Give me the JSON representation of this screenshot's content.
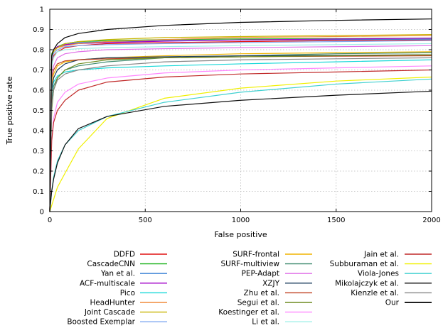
{
  "chart_data": {
    "type": "line",
    "title": "",
    "xlabel": "False positive",
    "ylabel": "True positive rate",
    "xlim": [
      0,
      2000
    ],
    "ylim": [
      0,
      1
    ],
    "xticks": [
      "0",
      "500",
      "1000",
      "1500",
      "2000"
    ],
    "yticks": [
      "0",
      "0.1",
      "0.2",
      "0.3",
      "0.4",
      "0.5",
      "0.6",
      "0.7",
      "0.8",
      "0.9",
      "1"
    ],
    "grid": true,
    "legend_position": "below",
    "series": [
      {
        "name": "DDFD",
        "color": "#e01010",
        "x": [
          0,
          10,
          20,
          40,
          80,
          150,
          300,
          600,
          1000,
          1500,
          2000
        ],
        "y": [
          0,
          0.74,
          0.77,
          0.79,
          0.81,
          0.82,
          0.83,
          0.835,
          0.84,
          0.845,
          0.848
        ]
      },
      {
        "name": "CascadeCNN",
        "color": "#1db31d",
        "x": [
          0,
          10,
          20,
          40,
          80,
          150,
          300,
          600,
          1000,
          1500,
          2000
        ],
        "y": [
          0,
          0.78,
          0.8,
          0.815,
          0.83,
          0.84,
          0.845,
          0.85,
          0.853,
          0.855,
          0.857
        ]
      },
      {
        "name": "Yan et al.",
        "color": "#3a82d6",
        "x": [
          0,
          10,
          20,
          40,
          80,
          150,
          300,
          600,
          1000,
          1500,
          2000
        ],
        "y": [
          0,
          0.76,
          0.79,
          0.81,
          0.825,
          0.835,
          0.84,
          0.845,
          0.848,
          0.85,
          0.852
        ]
      },
      {
        "name": "ACF-multiscale",
        "color": "#a000c8",
        "x": [
          0,
          10,
          20,
          40,
          80,
          150,
          300,
          600,
          1000,
          1500,
          2000
        ],
        "y": [
          0,
          0.77,
          0.8,
          0.815,
          0.825,
          0.83,
          0.835,
          0.842,
          0.848,
          0.853,
          0.857
        ]
      },
      {
        "name": "Pico",
        "color": "#18d8d8",
        "x": [
          0,
          10,
          20,
          40,
          80,
          150,
          300,
          600,
          1000,
          1500,
          2000
        ],
        "y": [
          0,
          0.6,
          0.64,
          0.67,
          0.69,
          0.7,
          0.71,
          0.72,
          0.73,
          0.74,
          0.75
        ]
      },
      {
        "name": "HeadHunter",
        "color": "#f08c3c",
        "x": [
          0,
          10,
          20,
          40,
          80,
          150,
          300,
          600,
          1000,
          1500,
          2000
        ],
        "y": [
          0,
          0.77,
          0.8,
          0.81,
          0.82,
          0.83,
          0.84,
          0.85,
          0.86,
          0.865,
          0.87
        ]
      },
      {
        "name": "Joint Cascade",
        "color": "#c8b400",
        "x": [
          0,
          10,
          20,
          40,
          80,
          150,
          300,
          600,
          1000,
          1500,
          2000
        ],
        "y": [
          0,
          0.77,
          0.79,
          0.81,
          0.83,
          0.84,
          0.85,
          0.86,
          0.865,
          0.87,
          0.875
        ]
      },
      {
        "name": "Boosted Exemplar",
        "color": "#80a8f0",
        "x": [
          0,
          10,
          20,
          40,
          80,
          150,
          300,
          600,
          1000,
          1500,
          2000
        ],
        "y": [
          0,
          0.75,
          0.78,
          0.8,
          0.815,
          0.82,
          0.825,
          0.83,
          0.835,
          0.84,
          0.845
        ]
      },
      {
        "name": "SURF-frontal",
        "color": "#f0b400",
        "x": [
          0,
          10,
          20,
          40,
          80,
          150,
          300,
          600,
          1000,
          1500,
          2000
        ],
        "y": [
          0,
          0.62,
          0.68,
          0.72,
          0.74,
          0.75,
          0.76,
          0.77,
          0.78,
          0.785,
          0.79
        ]
      },
      {
        "name": "SURF-multiview",
        "color": "#408c70",
        "x": [
          0,
          10,
          20,
          40,
          80,
          150,
          300,
          600,
          1000,
          1500,
          2000
        ],
        "y": [
          0,
          0.55,
          0.62,
          0.66,
          0.7,
          0.72,
          0.74,
          0.76,
          0.77,
          0.78,
          0.785
        ]
      },
      {
        "name": "PEP-Adapt",
        "color": "#e070e8",
        "x": [
          0,
          10,
          20,
          40,
          80,
          150,
          300,
          600,
          1000,
          1500,
          2000
        ],
        "y": [
          0,
          0.66,
          0.72,
          0.76,
          0.78,
          0.79,
          0.8,
          0.805,
          0.81,
          0.815,
          0.82
        ]
      },
      {
        "name": "XZJY",
        "color": "#1f4060",
        "x": [
          0,
          10,
          20,
          40,
          80,
          150,
          300,
          600,
          1000,
          1500,
          2000
        ],
        "y": [
          0,
          0.6,
          0.66,
          0.7,
          0.73,
          0.75,
          0.76,
          0.765,
          0.77,
          0.772,
          0.775
        ]
      },
      {
        "name": "Zhu et al.",
        "color": "#c04020",
        "x": [
          0,
          10,
          20,
          40,
          80,
          150,
          300,
          600,
          1000,
          1500,
          2000
        ],
        "y": [
          0,
          0.66,
          0.7,
          0.73,
          0.745,
          0.75,
          0.755,
          0.76,
          0.765,
          0.768,
          0.77
        ]
      },
      {
        "name": "Segui et al.",
        "color": "#6e8c20",
        "x": [
          0,
          10,
          20,
          40,
          80,
          150,
          300,
          600,
          1000,
          1500,
          2000
        ],
        "y": [
          0,
          0.5,
          0.6,
          0.66,
          0.7,
          0.73,
          0.75,
          0.76,
          0.765,
          0.77,
          0.775
        ]
      },
      {
        "name": "Koestinger et al.",
        "color": "#ff88ff",
        "x": [
          0,
          10,
          20,
          40,
          80,
          150,
          300,
          600,
          1000,
          1500,
          2000
        ],
        "y": [
          0,
          0.35,
          0.46,
          0.54,
          0.59,
          0.63,
          0.66,
          0.685,
          0.7,
          0.71,
          0.72
        ]
      },
      {
        "name": "Li et al.",
        "color": "#a0f0e8",
        "x": [
          0,
          10,
          20,
          40,
          80,
          150,
          300,
          600,
          1000,
          1500,
          2000
        ],
        "y": [
          0,
          0.72,
          0.76,
          0.79,
          0.8,
          0.805,
          0.81,
          0.815,
          0.82,
          0.825,
          0.83
        ]
      },
      {
        "name": "Jain et al.",
        "color": "#c02828",
        "x": [
          0,
          10,
          20,
          40,
          80,
          150,
          300,
          600,
          1000,
          1500,
          2000
        ],
        "y": [
          0,
          0.35,
          0.44,
          0.5,
          0.55,
          0.6,
          0.64,
          0.665,
          0.68,
          0.69,
          0.7
        ]
      },
      {
        "name": "Subburaman et al.",
        "color": "#f0f000",
        "x": [
          0,
          10,
          20,
          40,
          80,
          150,
          300,
          600,
          1000,
          1500,
          2000
        ],
        "y": [
          0,
          0.03,
          0.06,
          0.12,
          0.19,
          0.31,
          0.46,
          0.56,
          0.61,
          0.645,
          0.665
        ]
      },
      {
        "name": "Viola-Jones",
        "color": "#40d0d0",
        "x": [
          0,
          10,
          20,
          40,
          80,
          150,
          300,
          600,
          1000,
          1500,
          2000
        ],
        "y": [
          0,
          0.1,
          0.17,
          0.25,
          0.33,
          0.4,
          0.47,
          0.54,
          0.59,
          0.63,
          0.655
        ]
      },
      {
        "name": "Mikolajczyk et al.",
        "color": "#101010",
        "x": [
          0,
          10,
          20,
          40,
          80,
          150,
          300,
          600,
          1000,
          1500,
          2000
        ],
        "y": [
          0,
          0.1,
          0.16,
          0.24,
          0.33,
          0.41,
          0.47,
          0.52,
          0.55,
          0.575,
          0.595
        ]
      },
      {
        "name": "Kienzle et al.",
        "color": "#888888",
        "x": [
          0,
          10,
          20,
          40,
          80,
          150,
          300,
          600,
          1000,
          1500,
          2000
        ],
        "y": [
          0,
          0.52,
          0.6,
          0.65,
          0.68,
          0.7,
          0.72,
          0.74,
          0.75,
          0.755,
          0.76
        ]
      },
      {
        "name": "Our",
        "color": "#000000",
        "x": [
          0,
          10,
          20,
          40,
          80,
          150,
          300,
          600,
          1000,
          1500,
          2000
        ],
        "y": [
          0,
          0.77,
          0.8,
          0.83,
          0.86,
          0.88,
          0.9,
          0.92,
          0.935,
          0.945,
          0.952
        ]
      }
    ]
  }
}
